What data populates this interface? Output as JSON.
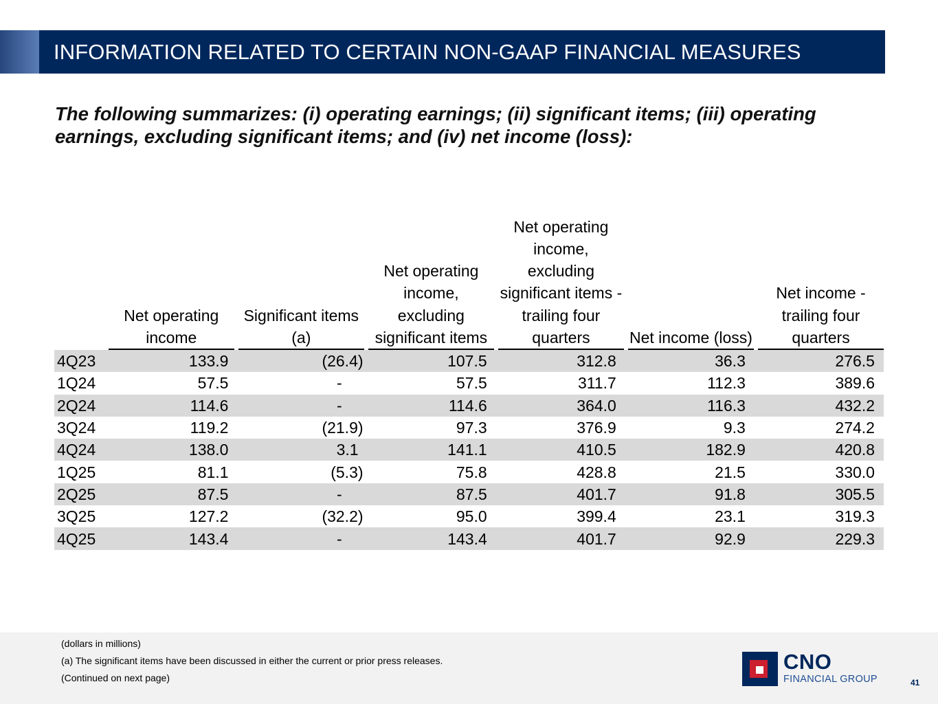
{
  "banner": {
    "title": "INFORMATION RELATED TO CERTAIN NON-GAAP FINANCIAL MEASURES"
  },
  "subtitle": "The following summarizes: (i) operating earnings; (ii) significant items; (iii) operating earnings, excluding significant items; and (iv) net income (loss):",
  "table": {
    "headers": [
      "Net operating income",
      "Significant items (a)",
      "Net operating income, excluding significant items",
      "Net operating income, excluding significant items - trailing four quarters",
      "Net income (loss)",
      "Net income - trailing four quarters"
    ],
    "rows": [
      [
        "4Q23",
        "133.9",
        "(26.4)",
        "107.5",
        "312.8",
        "36.3",
        "276.5"
      ],
      [
        "1Q24",
        "57.5",
        "-",
        "57.5",
        "311.7",
        "112.3",
        "389.6"
      ],
      [
        "2Q24",
        "114.6",
        "-",
        "114.6",
        "364.0",
        "116.3",
        "432.2"
      ],
      [
        "3Q24",
        "119.2",
        "(21.9)",
        "97.3",
        "376.9",
        "9.3",
        "274.2"
      ],
      [
        "4Q24",
        "138.0",
        "3.1",
        "141.1",
        "410.5",
        "182.9",
        "420.8"
      ],
      [
        "1Q25",
        "81.1",
        "(5.3)",
        "75.8",
        "428.8",
        "21.5",
        "330.0"
      ],
      [
        "2Q25",
        "87.5",
        "-",
        "87.5",
        "401.7",
        "91.8",
        "305.5"
      ],
      [
        "3Q25",
        "127.2",
        "(32.2)",
        "95.0",
        "399.4",
        "23.1",
        "319.3"
      ],
      [
        "4Q25",
        "143.4",
        "-",
        "143.4",
        "401.7",
        "92.9",
        "229.3"
      ]
    ]
  },
  "footnotes": {
    "units": "(dollars in millions)",
    "note_a": "(a) The significant items have been discussed in either the current or prior press releases.",
    "continued": "(Continued on next page)"
  },
  "logo": {
    "name": "CNO",
    "tagline": "FINANCIAL GROUP"
  },
  "page_number": "41",
  "colors": {
    "navy": "#00275c",
    "red": "#cc1f2f",
    "row_shade": "#d9d9d9",
    "footer_bg": "#f2f2f2"
  }
}
